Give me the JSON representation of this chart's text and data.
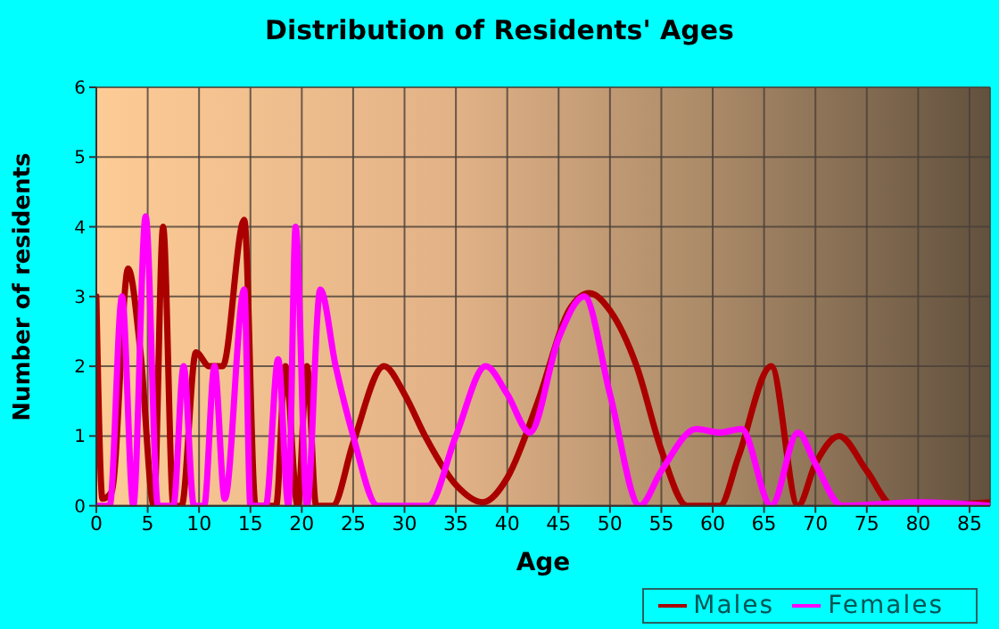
{
  "chart_data": {
    "type": "line",
    "title": "Distribution of Residents' Ages",
    "xlabel": "Age",
    "ylabel": "Number of residents",
    "xlim": [
      0,
      87
    ],
    "xticks": [
      0,
      5,
      10,
      15,
      20,
      25,
      30,
      35,
      40,
      45,
      50,
      55,
      60,
      65,
      70,
      75,
      80,
      85
    ],
    "ylim": [
      0,
      6
    ],
    "yticks": [
      0,
      1,
      2,
      3,
      4,
      5,
      6
    ],
    "grid": true,
    "legend": "bottom right",
    "marker": "none",
    "line_style": "solid",
    "series": [
      {
        "name": "Males",
        "color": "#aa0000",
        "x": [
          0,
          0.6,
          1.5,
          3.1,
          4.3,
          5.6,
          6.5,
          7.5,
          8.3,
          9.7,
          11,
          12.3,
          14.4,
          15.5,
          17.5,
          18.4,
          19.6,
          20.5,
          21.4,
          23,
          25,
          28,
          30,
          32,
          35,
          37.6,
          40,
          43,
          46,
          48,
          50,
          52.6,
          55,
          57.5,
          60.7,
          62.5,
          65.7,
          68.3,
          70,
          72.3,
          75,
          77.6,
          80,
          87
        ],
        "values": [
          3,
          0.1,
          0.2,
          3.4,
          2.2,
          0,
          4,
          0,
          0,
          2.2,
          2,
          2,
          4.1,
          0,
          0,
          2,
          0,
          2,
          0,
          0,
          0.9,
          2,
          1.6,
          1,
          0.3,
          0.05,
          0.4,
          1.5,
          2.8,
          3.05,
          2.8,
          2,
          0.8,
          0,
          0,
          0.7,
          2,
          0,
          0.6,
          1,
          0.5,
          0,
          0,
          0.05
        ]
      },
      {
        "name": "Females",
        "color": "#ff00ff",
        "x": [
          0,
          1.3,
          2.5,
          3.6,
          4.8,
          6,
          7.5,
          8.5,
          9.5,
          10.5,
          11.5,
          12.5,
          14.4,
          15,
          16.5,
          17.7,
          18.7,
          19.4,
          20.5,
          21.8,
          23.3,
          25,
          27.4,
          32.3,
          35,
          37.9,
          40,
          42.2,
          45,
          47.5,
          50,
          52.9,
          55,
          58.4,
          60.7,
          62.8,
          65.7,
          68.3,
          70,
          72.6,
          80,
          87
        ],
        "values": [
          0,
          0,
          3,
          0,
          4.15,
          0,
          0,
          2,
          0,
          0,
          2,
          0.1,
          3.1,
          0,
          0,
          2.1,
          0,
          4,
          0,
          3.1,
          2,
          1,
          0,
          0,
          1,
          2,
          1.6,
          1.05,
          2.4,
          3,
          1.6,
          0,
          0.5,
          1.1,
          1.05,
          1.1,
          0,
          1.05,
          0.6,
          0,
          0.05,
          0
        ]
      }
    ]
  }
}
